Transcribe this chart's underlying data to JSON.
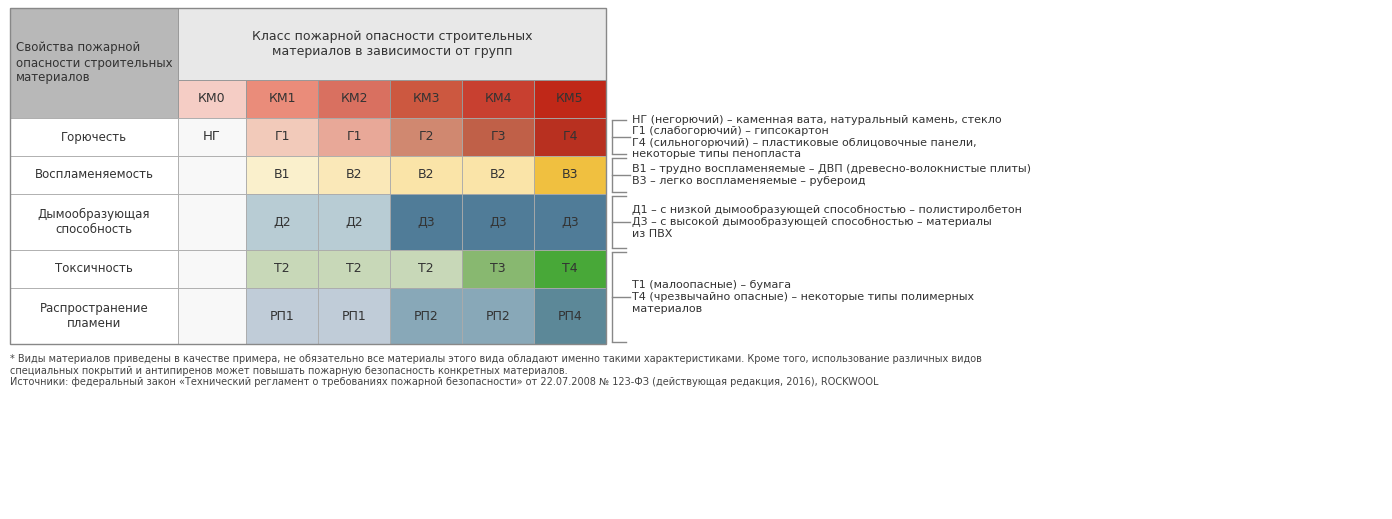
{
  "title_left": "Свойства пожарной\nопасности строительных\nматериалов",
  "title_center": "Класс пожарной опасности строительных\nматериалов в зависимости от групп",
  "col_headers": [
    "КМ0",
    "КМ1",
    "КМ2",
    "КМ3",
    "КМ4",
    "КМ5"
  ],
  "km_header_colors": [
    "#f5cdc5",
    "#ea8c7a",
    "#d97060",
    "#cc5840",
    "#c84030",
    "#c02818"
  ],
  "row_labels": [
    "Горючесть",
    "Воспламеняемость",
    "Дымообразующая\nспособность",
    "Токсичность",
    "Распространение\nпламени"
  ],
  "km0_values": [
    "НГ",
    "",
    "",
    "",
    ""
  ],
  "table_data": [
    [
      "Г1",
      "Г1",
      "Г2",
      "Г3",
      "Г4"
    ],
    [
      "В1",
      "В2",
      "В2",
      "В2",
      "В3"
    ],
    [
      "Д2",
      "Д2",
      "Д3",
      "Д3",
      "Д3"
    ],
    [
      "Т2",
      "Т2",
      "Т2",
      "Т3",
      "Т4"
    ],
    [
      "РП1",
      "РП1",
      "РП2",
      "РП2",
      "РП4"
    ]
  ],
  "cell_colors": [
    [
      "#f2caba",
      "#e8a898",
      "#d08870",
      "#c06048",
      "#b83020"
    ],
    [
      "#faf0cc",
      "#fae8b8",
      "#fae4a8",
      "#fae4a8",
      "#f0c040"
    ],
    [
      "#b8ccd4",
      "#b8ccd4",
      "#507c98",
      "#507c98",
      "#507c98"
    ],
    [
      "#c8d8b8",
      "#c8d8b8",
      "#c8d8b8",
      "#88b870",
      "#48a838"
    ],
    [
      "#c0ccd8",
      "#c0ccd8",
      "#88a8b8",
      "#88a8b8",
      "#5c8898"
    ]
  ],
  "annot_groups": [
    {
      "rows": [
        0
      ],
      "lines": [
        "НГ (негорючий) – каменная вата, натуральный камень, стекло",
        "Г1 (слабогорючий) – гипсокартон",
        "Г4 (сильногорючий) – пластиковые облицовочные панели,",
        "некоторые типы пенопласта"
      ]
    },
    {
      "rows": [
        1
      ],
      "lines": [
        "В1 – трудно воспламеняемые – ДВП (древесно-волокнистые плиты)",
        "В3 – легко воспламеняемые – рубероид"
      ]
    },
    {
      "rows": [
        2
      ],
      "lines": [
        "Д1 – с низкой дымообразующей способностью – полистиролбетон",
        "Д3 – с высокой дымообразующей способностью – материалы",
        "из ПВХ"
      ]
    },
    {
      "rows": [
        3,
        4
      ],
      "lines": [
        "Т1 (малоопасные) – бумага",
        "Т4 (чрезвычайно опасные) – некоторые типы полимерных",
        "материалов"
      ]
    }
  ],
  "footnote_lines": [
    "* Виды материалов приведены в качестве примера, не обязательно все материалы этого вида обладают именно такими характеристиками. Кроме того, использование различных видов",
    "специальных покрытий и антипиренов может повышать пожарную безопасность конкретных материалов.",
    "Источники: федеральный закон «Технический регламент о требованиях пожарной безопасности» от 22.07.2008 № 123-ФЗ (действующая редакция, 2016), ROCKWOOL"
  ],
  "bg_color": "#ffffff",
  "left_col_bg": "#b8b8b8",
  "header_center_bg": "#e8e8e8"
}
